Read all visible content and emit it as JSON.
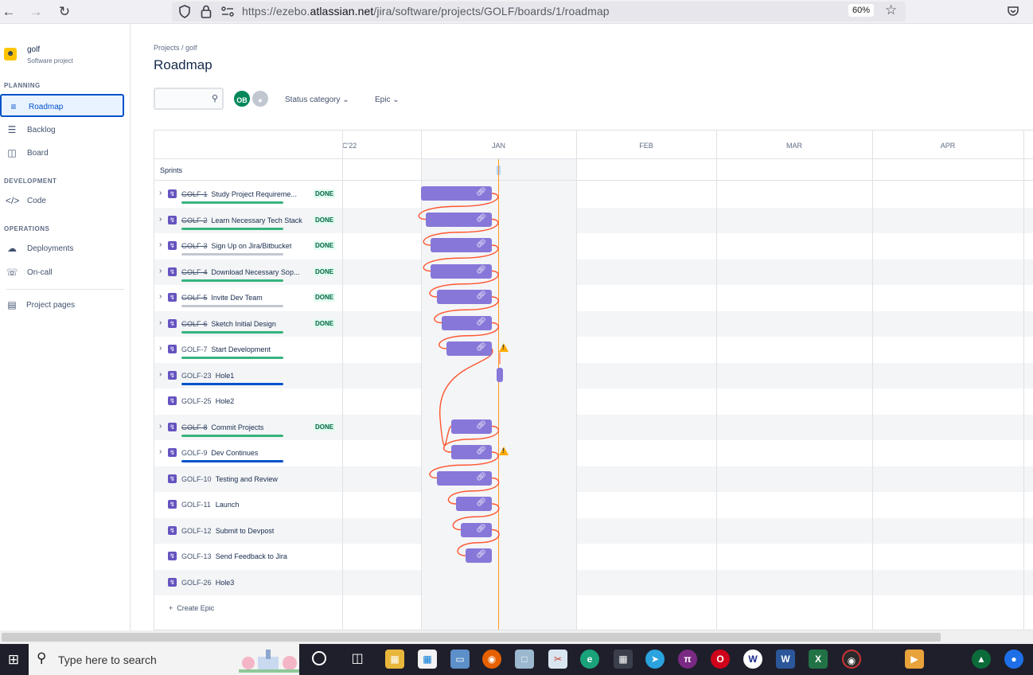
{
  "browser": {
    "url_prefix": "https://ezebo.",
    "url_domain": "atlassian.net",
    "url_path": "/jira/software/projects/GOLF/boards/1/roadmap",
    "zoom": "60%"
  },
  "sidebar": {
    "project_name": "golf",
    "project_type": "Software project",
    "sections": {
      "planning": "PLANNING",
      "development": "DEVELOPMENT",
      "operations": "OPERATIONS"
    },
    "items": {
      "roadmap": "Roadmap",
      "backlog": "Backlog",
      "board": "Board",
      "code": "Code",
      "deployments": "Deployments",
      "oncall": "On-call",
      "project_pages": "Project pages"
    }
  },
  "header": {
    "breadcrumb": "Projects  /  golf",
    "title": "Roadmap"
  },
  "toolbar": {
    "avatar_initials": "OB",
    "filter_status": "Status category",
    "filter_epic": "Epic"
  },
  "timeline": {
    "months": [
      "C'22",
      "JAN",
      "FEB",
      "MAR",
      "APR"
    ],
    "sprints_label": "Sprints",
    "done_label": "DONE",
    "create_epic": "Create Epic"
  },
  "epics": [
    {
      "key": "GOLF-1",
      "summary": "Study Project Requireme...",
      "done": true,
      "has_children": true,
      "progress_color": "#36b37e",
      "bar": true,
      "warning": false
    },
    {
      "key": "GOLF-2",
      "summary": "Learn Necessary Tech Stack",
      "done": true,
      "has_children": true,
      "progress_color": "#36b37e",
      "bar": true,
      "warning": false
    },
    {
      "key": "GOLF-3",
      "summary": "Sign Up on Jira/Bitbucket",
      "done": true,
      "has_children": true,
      "progress_color": "#c1c7d0",
      "bar": true,
      "warning": false
    },
    {
      "key": "GOLF-4",
      "summary": "Download Necessary Sop...",
      "done": true,
      "has_children": true,
      "progress_color": "#36b37e",
      "bar": true,
      "warning": false
    },
    {
      "key": "GOLF-5",
      "summary": "Invite Dev Team",
      "done": true,
      "has_children": true,
      "progress_color": "#c1c7d0",
      "bar": true,
      "warning": false
    },
    {
      "key": "GOLF-6",
      "summary": "Sketch Initial Design",
      "done": true,
      "has_children": true,
      "progress_color": "#36b37e",
      "bar": true,
      "warning": false
    },
    {
      "key": "GOLF-7",
      "summary": "Start Development",
      "done": false,
      "has_children": true,
      "progress_color": "#36b37e",
      "bar": true,
      "warning": true
    },
    {
      "key": "GOLF-23",
      "summary": "Hole1",
      "done": false,
      "has_children": true,
      "progress_color": "#0052cc",
      "bar": true,
      "warning": false
    },
    {
      "key": "GOLF-25",
      "summary": "Hole2",
      "done": false,
      "has_children": false,
      "progress_color": "",
      "bar": false,
      "warning": false
    },
    {
      "key": "GOLF-8",
      "summary": "Commit Projects",
      "done": true,
      "has_children": true,
      "progress_color": "#36b37e",
      "bar": true,
      "warning": false
    },
    {
      "key": "GOLF-9",
      "summary": "Dev Continues",
      "done": false,
      "has_children": true,
      "progress_color": "#0052cc",
      "bar": true,
      "warning": true
    },
    {
      "key": "GOLF-10",
      "summary": "Testing and Review",
      "done": false,
      "has_children": false,
      "progress_color": "",
      "bar": true,
      "warning": false
    },
    {
      "key": "GOLF-11",
      "summary": "Launch",
      "done": false,
      "has_children": false,
      "progress_color": "",
      "bar": true,
      "warning": false
    },
    {
      "key": "GOLF-12",
      "summary": "Submit to Devpost",
      "done": false,
      "has_children": false,
      "progress_color": "",
      "bar": true,
      "warning": false
    },
    {
      "key": "GOLF-13",
      "summary": "Send Feedback to Jira",
      "done": false,
      "has_children": false,
      "progress_color": "",
      "bar": true,
      "warning": false
    },
    {
      "key": "GOLF-26",
      "summary": "Hole3",
      "done": false,
      "has_children": false,
      "progress_color": "",
      "bar": false,
      "warning": false
    }
  ],
  "taskbar": {
    "search_placeholder": "Type here to search"
  },
  "colors": {
    "accent": "#0052cc",
    "epic_bar": "#8777d9",
    "dependency_line": "#ff5630",
    "today_line": "#ff991f"
  }
}
